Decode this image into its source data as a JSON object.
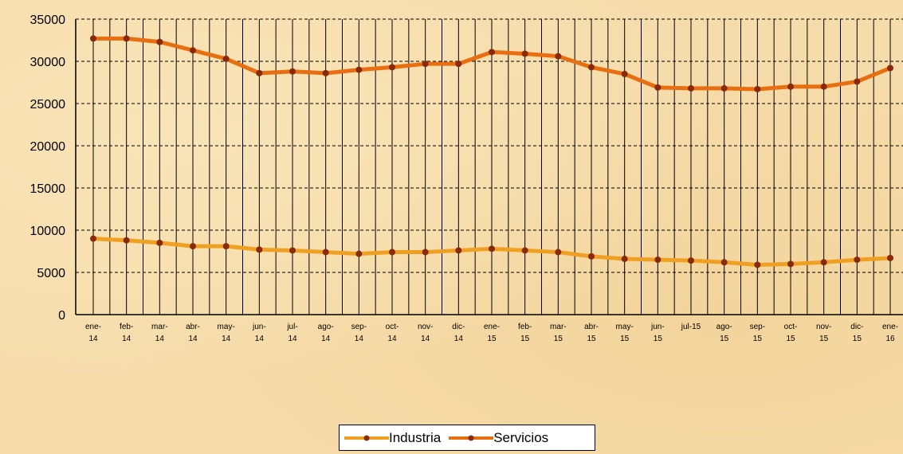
{
  "chart_data": {
    "type": "line",
    "title": "",
    "xlabel": "",
    "ylabel": "",
    "categories": [
      [
        "ene-",
        "14"
      ],
      [
        "feb-",
        "14"
      ],
      [
        "mar-",
        "14"
      ],
      [
        "abr-",
        "14"
      ],
      [
        "may-",
        "14"
      ],
      [
        "jun-",
        "14"
      ],
      [
        "jul-",
        "14"
      ],
      [
        "ago-",
        "14"
      ],
      [
        "sep-",
        "14"
      ],
      [
        "oct-",
        "14"
      ],
      [
        "nov-",
        "14"
      ],
      [
        "dic-",
        "14"
      ],
      [
        "ene-",
        "15"
      ],
      [
        "feb-",
        "15"
      ],
      [
        "mar-",
        "15"
      ],
      [
        "abr-",
        "15"
      ],
      [
        "may-",
        "15"
      ],
      [
        "jun-",
        "15"
      ],
      [
        "jul-15",
        ""
      ],
      [
        "ago-",
        "15"
      ],
      [
        "sep-",
        "15"
      ],
      [
        "oct-",
        "15"
      ],
      [
        "nov-",
        "15"
      ],
      [
        "dic-",
        "15"
      ],
      [
        "ene-",
        "16"
      ]
    ],
    "series": [
      {
        "name": "Industria",
        "color": "#f0a020",
        "values": [
          9000,
          8800,
          8500,
          8100,
          8100,
          7700,
          7600,
          7400,
          7200,
          7400,
          7400,
          7600,
          7800,
          7600,
          7400,
          6900,
          6600,
          6500,
          6400,
          6200,
          5900,
          6000,
          6200,
          6500,
          6700
        ]
      },
      {
        "name": "Servicios",
        "color": "#e86e10",
        "values": [
          32700,
          32700,
          32300,
          31300,
          30300,
          28600,
          28800,
          28600,
          29000,
          29300,
          29700,
          29700,
          31100,
          30900,
          30600,
          29300,
          28500,
          26900,
          26800,
          26800,
          26700,
          27000,
          27000,
          27600,
          29200
        ]
      }
    ],
    "yticks": [
      "35000",
      "30000",
      "25000",
      "20000",
      "15000",
      "10000",
      "5000",
      "0"
    ],
    "ylim": [
      0,
      35000
    ],
    "grid": "vertical solid lines, horizontal dashed lines",
    "legend_position": "bottom-center",
    "marker_color": "#8a2a0a"
  }
}
